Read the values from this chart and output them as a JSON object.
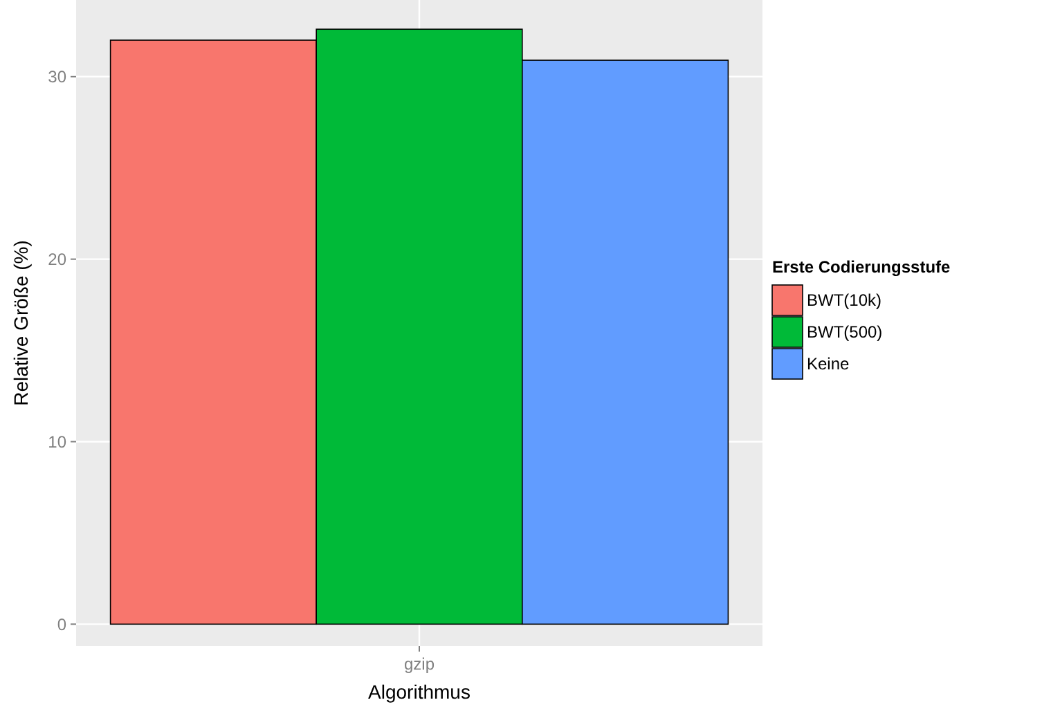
{
  "chart_data": {
    "type": "bar",
    "xlabel": "Algorithmus",
    "ylabel": "Relative Größe (%)",
    "legend_title": "Erste Codierungsstufe",
    "categories": [
      "gzip"
    ],
    "series": [
      {
        "name": "BWT(10k)",
        "color": "#f8766d",
        "values": [
          32.0
        ]
      },
      {
        "name": "BWT(500)",
        "color": "#00ba38",
        "values": [
          32.6
        ]
      },
      {
        "name": "Keine",
        "color": "#619cff",
        "values": [
          30.9
        ]
      }
    ],
    "ylim": [
      -1.2,
      34.2
    ],
    "yticks": [
      0,
      10,
      20,
      30
    ],
    "grid": true,
    "legend": "right"
  }
}
